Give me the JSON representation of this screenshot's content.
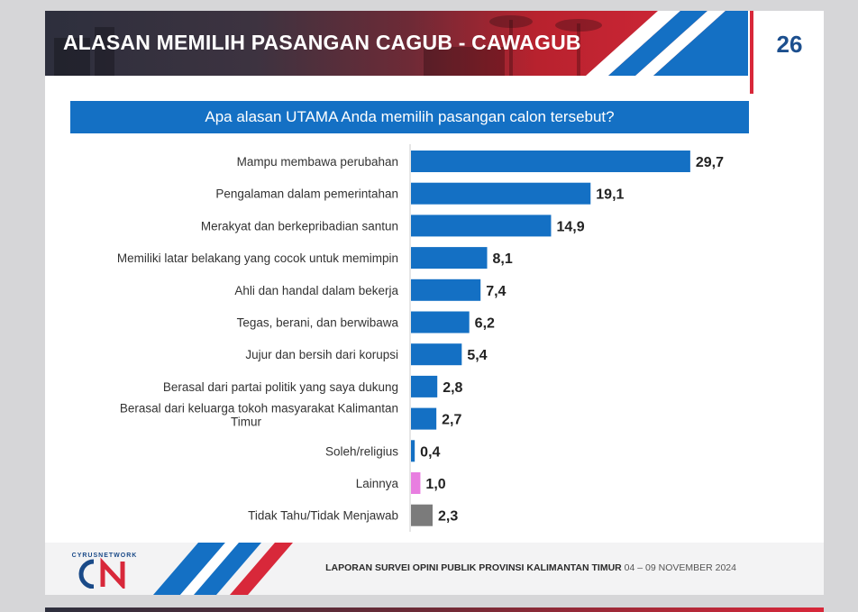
{
  "header": {
    "title": "ALASAN MEMILIH PASANGAN CAGUB - CAWAGUB",
    "page_number": "26"
  },
  "question": "Apa alasan UTAMA Anda memilih pasangan calon tersebut?",
  "chart_data": {
    "type": "bar",
    "orientation": "horizontal",
    "title": "",
    "xlabel": "",
    "ylabel": "",
    "categories": [
      "Mampu membawa perubahan",
      "Pengalaman dalam pemerintahan",
      "Merakyat dan berkepribadian santun",
      "Memiliki latar belakang yang cocok untuk memimpin",
      "Ahli dan handal dalam bekerja",
      "Tegas, berani, dan berwibawa",
      "Jujur dan bersih dari korupsi",
      "Berasal dari partai politik yang saya dukung",
      "Berasal dari keluarga tokoh masyarakat Kalimantan Timur",
      "Soleh/religius",
      "Lainnya",
      "Tidak Tahu/Tidak Menjawab"
    ],
    "values": [
      29.7,
      19.1,
      14.9,
      8.1,
      7.4,
      6.2,
      5.4,
      2.8,
      2.7,
      0.4,
      1.0,
      2.3
    ],
    "value_labels": [
      "29,7",
      "19,1",
      "14,9",
      "8,1",
      "7,4",
      "6,2",
      "5,4",
      "2,8",
      "2,7",
      "0,4",
      "1,0",
      "2,3"
    ],
    "colors": [
      "#1470c4",
      "#1470c4",
      "#1470c4",
      "#1470c4",
      "#1470c4",
      "#1470c4",
      "#1470c4",
      "#1470c4",
      "#1470c4",
      "#1470c4",
      "#e87ee0",
      "#7b7b7b"
    ],
    "xlim": [
      0,
      30
    ],
    "grid": false,
    "legend": "none"
  },
  "footer": {
    "logo_text": "CYRUSNETWORK",
    "report_title": "LAPORAN SURVEI OPINI PUBLIK PROVINSI KALIMANTAN TIMUR",
    "dates": "04 – 09 NOVEMBER 2024"
  },
  "colors": {
    "primary_blue": "#1470c4",
    "accent_red": "#d8283a",
    "navy": "#1c4f8e"
  }
}
